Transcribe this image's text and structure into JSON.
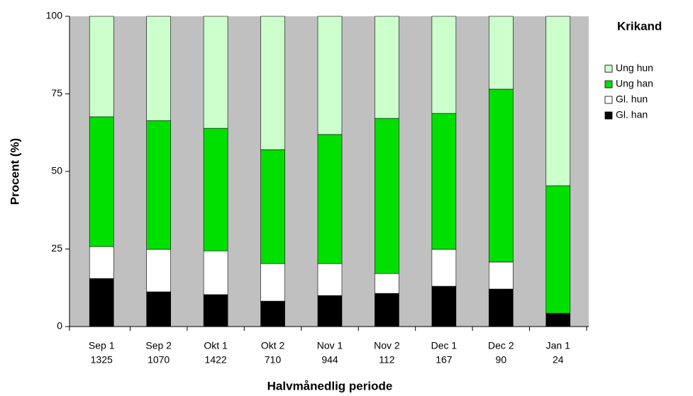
{
  "chart_data": {
    "type": "stacked_bar",
    "title": "Krikand",
    "x_label": "Halvmånedlig periode",
    "y_label": "Procent (%)",
    "categories": [
      "Sep 1",
      "Sep 2",
      "Okt 1",
      "Okt 2",
      "Nov 1",
      "Nov 2",
      "Dec 1",
      "Dec 2",
      "Jan 1"
    ],
    "category_counts": [
      1325,
      1070,
      1422,
      710,
      944,
      112,
      167,
      90,
      24
    ],
    "series": [
      {
        "name": "Gl. han",
        "color": "#000000",
        "values": [
          15.5,
          11.2,
          10.3,
          8.2,
          10.0,
          10.7,
          13.0,
          12.1,
          4.3
        ]
      },
      {
        "name": "Gl. hun",
        "color": "#ffffff",
        "values": [
          10.3,
          13.7,
          14.1,
          12.1,
          10.3,
          6.4,
          11.9,
          8.7,
          0
        ]
      },
      {
        "name": "Ung han",
        "color": "#00e000",
        "values": [
          41.8,
          41.5,
          39.5,
          36.7,
          41.6,
          50.0,
          43.8,
          55.7,
          41.1
        ]
      },
      {
        "name": "Ung hun",
        "color": "#ccffcc",
        "values": [
          32.4,
          33.6,
          36.1,
          43.0,
          38.1,
          32.9,
          31.3,
          23.5,
          54.6
        ]
      }
    ],
    "ylim": [
      0,
      100
    ],
    "yticks": [
      0,
      25,
      50,
      75,
      100
    ],
    "plot_background": "#c0c0c0",
    "legend": "right"
  }
}
